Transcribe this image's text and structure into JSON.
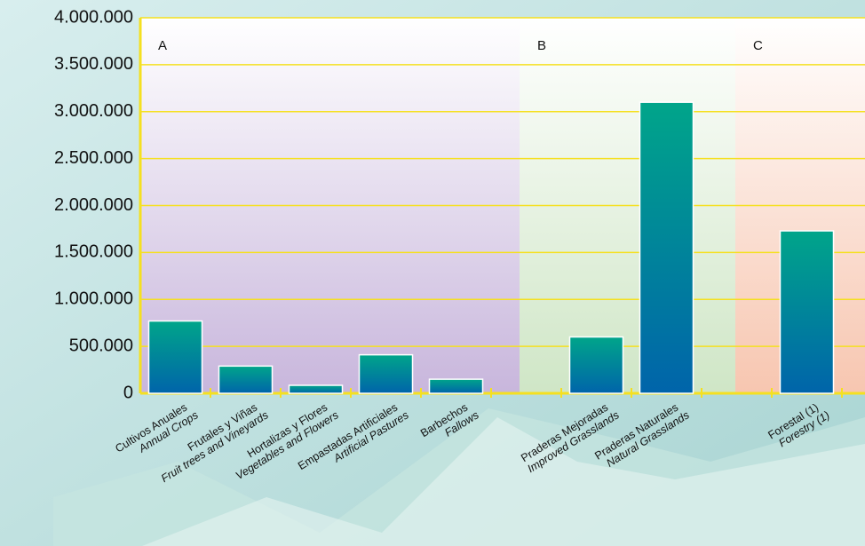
{
  "chart_data": {
    "type": "bar",
    "categories": [
      "Cultivos Anuales",
      "Frutales y Viñas",
      "Hortalizas y Flores",
      "Empastadas Artificiales",
      "Barbechos",
      null,
      "Praderas Mejoradas",
      "Praderas Naturales",
      null,
      "Forestal (1)"
    ],
    "categories_english": [
      "Annual Crops",
      "Fruit trees and Vineyards",
      "Vegetables and Flowers",
      "Artificial Pastures",
      "Fallows",
      null,
      "Improved Grasslands",
      "Natural  Grasslands",
      null,
      "Forestry (1)"
    ],
    "values": [
      770000,
      290000,
      85000,
      410000,
      150000,
      null,
      600000,
      3100000,
      null,
      1730000
    ],
    "sections": [
      {
        "label": "A",
        "color": "#c8b6dc"
      },
      {
        "label": "B",
        "color": "#cfe6c6"
      },
      {
        "label": "C",
        "color": "#f7c6b0"
      }
    ],
    "ylim": [
      0,
      4000000
    ],
    "yticks": [
      0,
      {
        "value": 500000,
        "label": "500.000"
      },
      {
        "value": 1000000,
        "label": "1.000.000"
      },
      {
        "value": 1500000,
        "label": "1.500.000"
      },
      {
        "value": 2000000,
        "label": "2.000.000"
      },
      {
        "value": 2500000,
        "label": "2.500.000"
      },
      {
        "value": 3000000,
        "label": "3.000.000"
      },
      {
        "value": 3500000,
        "label": "3.500.000"
      },
      {
        "value": 4000000,
        "label": "4.000.000"
      }
    ],
    "grid": true,
    "grid_color": "#f5e020",
    "bar_colors": [
      "#00a58a",
      "#0064aa"
    ]
  }
}
